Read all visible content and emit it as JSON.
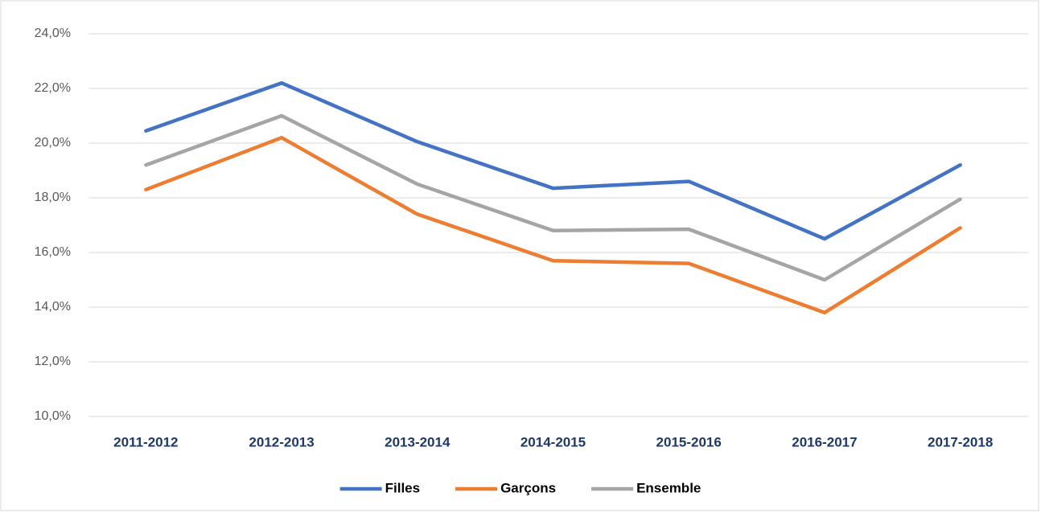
{
  "chart_data": {
    "type": "line",
    "categories": [
      "2011-2012",
      "2012-2013",
      "2013-2014",
      "2014-2015",
      "2015-2016",
      "2016-2017",
      "2017-2018"
    ],
    "series": [
      {
        "name": "Filles",
        "color": "#4472c4",
        "values": [
          20.45,
          22.2,
          20.05,
          18.35,
          18.6,
          16.5,
          19.2
        ]
      },
      {
        "name": "Garçons",
        "color": "#ed7d31",
        "values": [
          18.3,
          20.2,
          17.4,
          15.7,
          15.6,
          13.8,
          16.9
        ]
      },
      {
        "name": "Ensemble",
        "color": "#a5a5a5",
        "values": [
          19.2,
          21.0,
          18.5,
          16.8,
          16.85,
          15.0,
          17.95
        ]
      }
    ],
    "ylim": [
      10,
      24
    ],
    "yticks": [
      {
        "value": 10,
        "label": "10,0%"
      },
      {
        "value": 12,
        "label": "12,0%"
      },
      {
        "value": 14,
        "label": "14,0%"
      },
      {
        "value": 16,
        "label": "16,0%"
      },
      {
        "value": 18,
        "label": "18,0%"
      },
      {
        "value": 20,
        "label": "20,0%"
      },
      {
        "value": 22,
        "label": "22,0%"
      },
      {
        "value": 24,
        "label": "24,0%"
      }
    ],
    "grid": true,
    "legend": "bottom"
  }
}
